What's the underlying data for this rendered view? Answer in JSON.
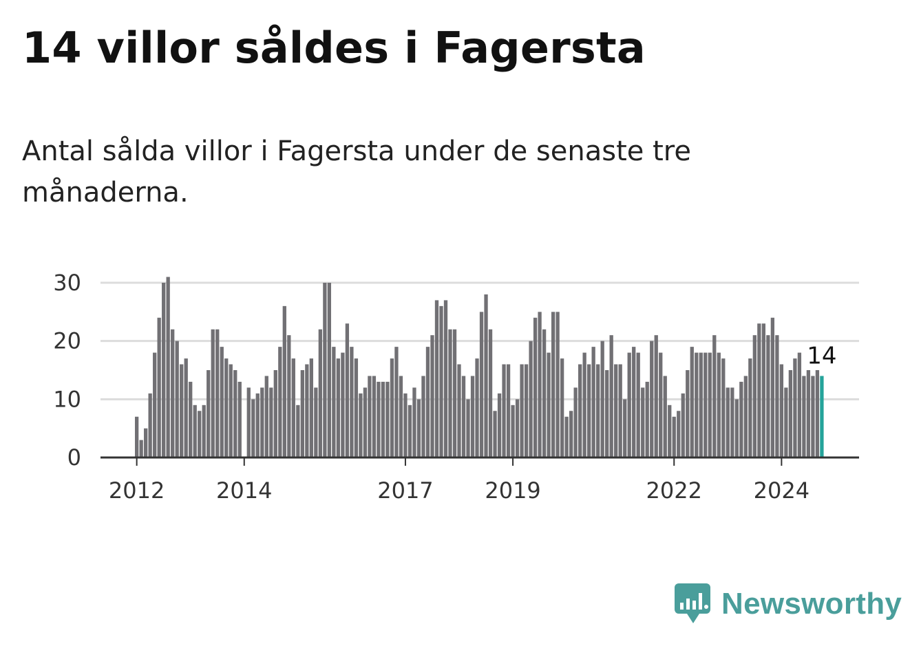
{
  "header": {
    "title": "14 villor såldes i Fagersta",
    "subtitle": "Antal sålda villor i Fagersta under de senaste tre månaderna."
  },
  "brand": {
    "name": "Newsworthy",
    "color": "#4a9e9b"
  },
  "chart_data": {
    "type": "bar",
    "title": "14 villor såldes i Fagersta",
    "subtitle": "Antal sålda villor i Fagersta under de senaste tre månaderna.",
    "xlabel": "",
    "ylabel": "",
    "ylim": [
      0,
      30
    ],
    "yticks": [
      0,
      10,
      20,
      30
    ],
    "grid": true,
    "x_tick_labels": [
      "2012",
      "2014",
      "2017",
      "2019",
      "2022",
      "2024"
    ],
    "x_tick_indices": [
      0,
      24,
      60,
      84,
      120,
      144
    ],
    "start": "2012-01",
    "bar_color": "#717074",
    "highlight_color": "#25a39a",
    "highlight_label": "14",
    "values": [
      7,
      3,
      5,
      11,
      18,
      24,
      30,
      31,
      22,
      20,
      16,
      17,
      13,
      9,
      8,
      9,
      15,
      22,
      22,
      19,
      17,
      16,
      15,
      13,
      0,
      12,
      10,
      11,
      12,
      14,
      12,
      15,
      19,
      26,
      21,
      17,
      9,
      15,
      16,
      17,
      12,
      22,
      30,
      30,
      19,
      17,
      18,
      23,
      19,
      17,
      11,
      12,
      14,
      14,
      13,
      13,
      13,
      17,
      19,
      14,
      11,
      9,
      12,
      10,
      14,
      19,
      21,
      27,
      26,
      27,
      22,
      22,
      16,
      14,
      10,
      14,
      17,
      25,
      28,
      22,
      8,
      11,
      16,
      16,
      9,
      10,
      16,
      16,
      20,
      24,
      25,
      22,
      18,
      25,
      25,
      17,
      7,
      8,
      12,
      16,
      18,
      16,
      19,
      16,
      20,
      15,
      21,
      16,
      16,
      10,
      18,
      19,
      18,
      12,
      13,
      20,
      21,
      18,
      14,
      9,
      7,
      8,
      11,
      15,
      19,
      18,
      18,
      18,
      18,
      21,
      18,
      17,
      12,
      12,
      10,
      13,
      14,
      17,
      21,
      23,
      23,
      21,
      24,
      21,
      16,
      12,
      15,
      17,
      18,
      14,
      15,
      14,
      15,
      14
    ]
  }
}
